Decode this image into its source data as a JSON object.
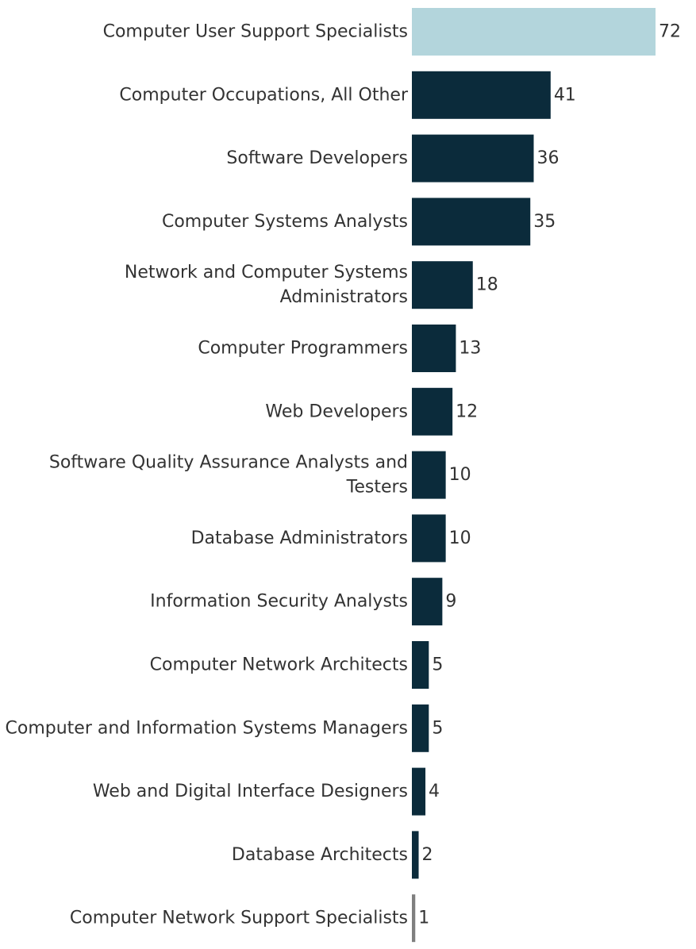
{
  "chart_data": {
    "type": "bar",
    "orientation": "horizontal",
    "title": "",
    "xlabel": "",
    "ylabel": "",
    "grid": false,
    "xlim": [
      0,
      72
    ],
    "colors": {
      "highlight": "#b3d5dc",
      "default": "#0b2b3b",
      "smallest": "#7f7f7f"
    },
    "categories": [
      "Computer User Support Specialists",
      "Computer Occupations, All Other",
      "Software Developers",
      "Computer Systems Analysts",
      "Network and Computer Systems Administrators",
      "Computer Programmers",
      "Web Developers",
      "Software Quality Assurance Analysts and Testers",
      "Database Administrators",
      "Information Security Analysts",
      "Computer Network Architects",
      "Computer and Information Systems Managers",
      "Web and Digital Interface Designers",
      "Database Architects",
      "Computer Network Support Specialists"
    ],
    "category_lines": [
      [
        "Computer User Support Specialists"
      ],
      [
        "Computer Occupations, All Other"
      ],
      [
        "Software Developers"
      ],
      [
        "Computer Systems Analysts"
      ],
      [
        "Network and Computer Systems",
        "Administrators"
      ],
      [
        "Computer Programmers"
      ],
      [
        "Web Developers"
      ],
      [
        "Software Quality Assurance Analysts and",
        "Testers"
      ],
      [
        "Database Administrators"
      ],
      [
        "Information Security Analysts"
      ],
      [
        "Computer Network Architects"
      ],
      [
        "Computer and Information Systems Managers"
      ],
      [
        "Web and Digital Interface Designers"
      ],
      [
        "Database Architects"
      ],
      [
        "Computer Network Support Specialists"
      ]
    ],
    "values": [
      72,
      41,
      36,
      35,
      18,
      13,
      12,
      10,
      10,
      9,
      5,
      5,
      4,
      2,
      1
    ],
    "value_labels": [
      "72",
      "41",
      "36",
      "35",
      "18",
      "13",
      "12",
      "10",
      "10",
      "9",
      "5",
      "5",
      "4",
      "2",
      "1"
    ]
  }
}
